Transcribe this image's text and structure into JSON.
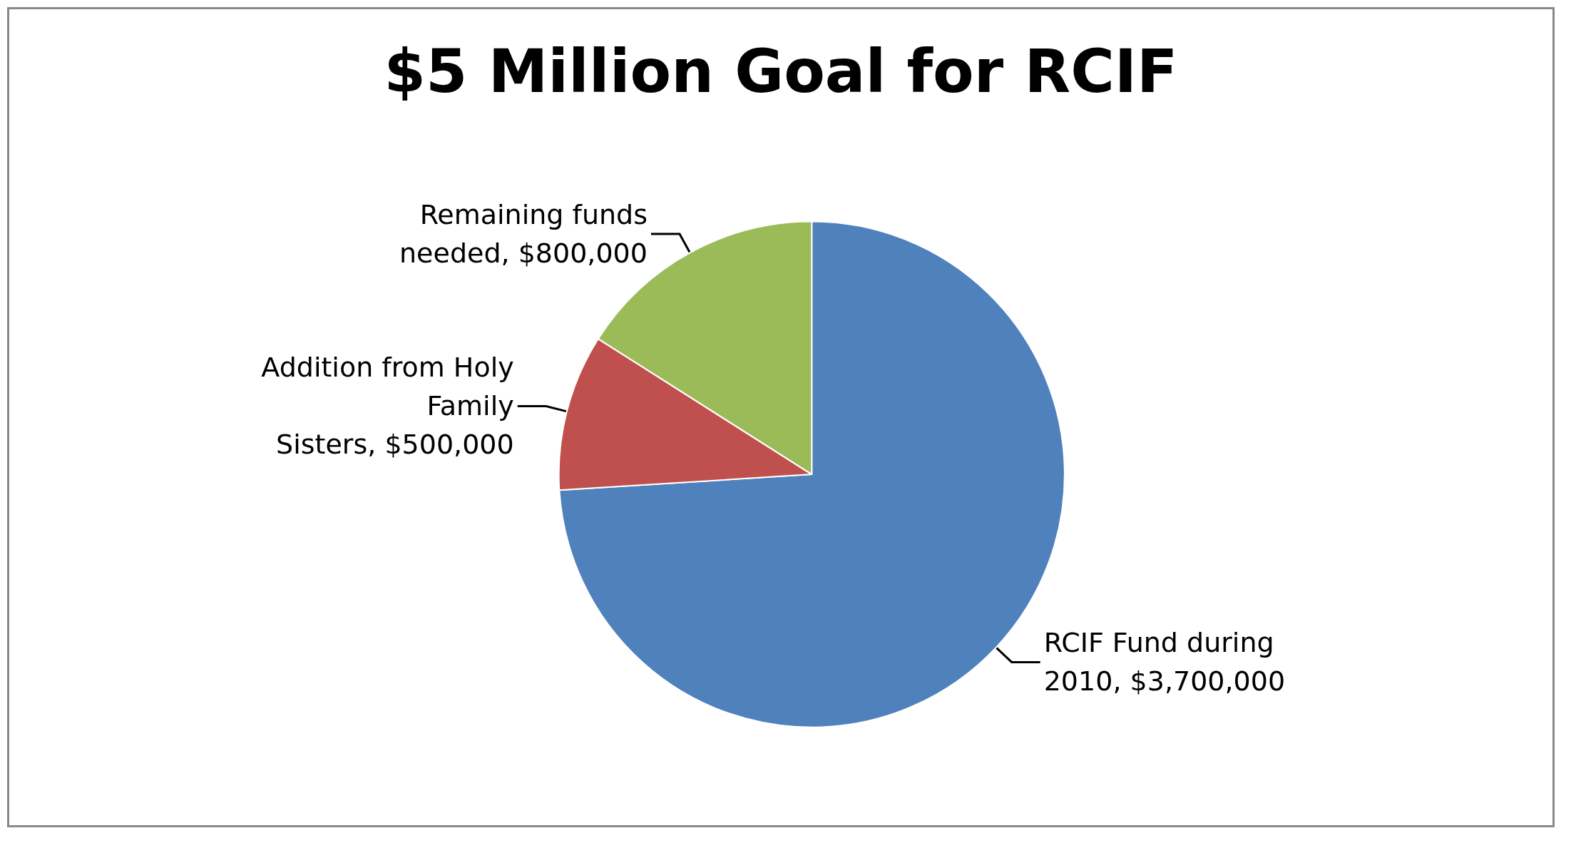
{
  "chart_data": {
    "type": "pie",
    "title": "$5 Million Goal for RCIF",
    "categories": [
      "RCIF Fund during 2010",
      "Addition from Holy Family Sisters",
      "Remaining funds needed"
    ],
    "values": [
      3700000,
      500000,
      800000
    ],
    "value_labels": [
      "$3,700,000",
      "$500,000",
      "$800,000"
    ],
    "colors": [
      "#4f81bd",
      "#c0504d",
      "#9bbb59"
    ],
    "legend": false
  }
}
